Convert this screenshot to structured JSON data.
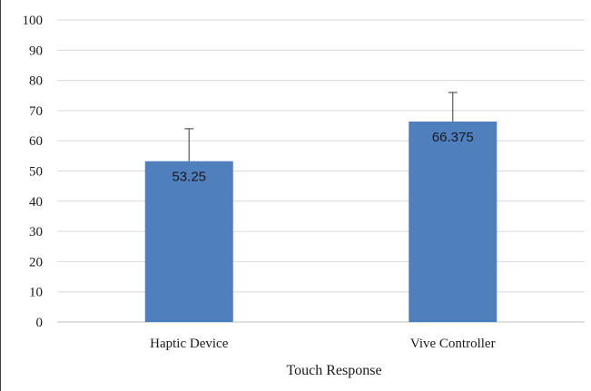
{
  "chart_data": {
    "type": "bar",
    "categories": [
      "Haptic Device",
      "Vive Controller"
    ],
    "values": [
      53.25,
      66.375
    ],
    "data_labels": [
      "53.25",
      "66.375"
    ],
    "error_bars_upper": [
      64,
      76
    ],
    "title": "",
    "xlabel": "Touch Response",
    "ylabel": "",
    "ylim": [
      0,
      100
    ],
    "yticks": [
      0,
      10,
      20,
      30,
      40,
      50,
      60,
      70,
      80,
      90,
      100
    ],
    "ytick_labels": [
      "0",
      "10",
      "20",
      "30",
      "40",
      "50",
      "60",
      "70",
      "80",
      "90",
      "100"
    ],
    "grid": true,
    "legend": "none",
    "colors": {
      "bar": "#4f7fbd",
      "grid": "#d9d9d9",
      "error_bar": "#595959",
      "axis": "#bfbfbf"
    }
  }
}
